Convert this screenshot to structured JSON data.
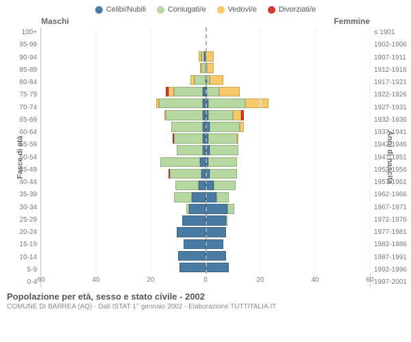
{
  "legend": {
    "items": [
      {
        "label": "Celibi/Nubili",
        "color": "#4a7ca3"
      },
      {
        "label": "Coniugati/e",
        "color": "#b6d7a0"
      },
      {
        "label": "Vedovi/e",
        "color": "#f8c968"
      },
      {
        "label": "Divorziati/e",
        "color": "#d43b2e"
      }
    ]
  },
  "headers": {
    "male": "Maschi",
    "female": "Femmine"
  },
  "ylabels": {
    "left": "Fasce di età",
    "right": "Anni di nascita"
  },
  "caption": {
    "title": "Popolazione per età, sesso e stato civile - 2002",
    "sub": "COMUNE DI BARREA (AQ) - Dati ISTAT 1° gennaio 2002 - Elaborazione TUTTITALIA.IT"
  },
  "xaxis": {
    "min": -60,
    "max": 60,
    "ticks": [
      -60,
      -40,
      -20,
      0,
      20,
      40,
      60
    ],
    "labels": [
      "60",
      "40",
      "20",
      "0",
      "20",
      "40",
      "60"
    ]
  },
  "age_labels": [
    "100+",
    "95-99",
    "90-94",
    "85-89",
    "80-84",
    "75-79",
    "70-74",
    "65-69",
    "60-64",
    "55-59",
    "50-54",
    "45-49",
    "40-44",
    "35-39",
    "30-34",
    "25-29",
    "20-24",
    "15-19",
    "10-14",
    "5-9",
    "0-4"
  ],
  "year_labels": [
    "≤ 1901",
    "1902-1906",
    "1907-1911",
    "1912-1916",
    "1917-1921",
    "1922-1926",
    "1927-1931",
    "1932-1936",
    "1937-1941",
    "1942-1946",
    "1947-1951",
    "1952-1956",
    "1957-1961",
    "1962-1966",
    "1967-1971",
    "1972-1976",
    "1977-1981",
    "1982-1986",
    "1987-1991",
    "1992-1996",
    "1997-2001"
  ],
  "colors": {
    "celibi": "#4a7ca3",
    "coniugati": "#b6d7a0",
    "vedovi": "#f8c968",
    "divorziati": "#d43b2e",
    "grid": "#eeeeee",
    "axis": "#cccccc",
    "zero": "#aaaaaa",
    "bg": "#ffffff"
  },
  "bars": {
    "male": [
      {
        "c": 0,
        "m": 0,
        "w": 0,
        "d": 0
      },
      {
        "c": 0,
        "m": 0,
        "w": 0,
        "d": 0
      },
      {
        "c": 1,
        "m": 2,
        "w": 2,
        "d": 0
      },
      {
        "c": 0,
        "m": 3,
        "w": 1,
        "d": 0
      },
      {
        "c": 0,
        "m": 8,
        "w": 3,
        "d": 0
      },
      {
        "c": 2,
        "m": 21,
        "w": 4,
        "d": 2
      },
      {
        "c": 2,
        "m": 32,
        "w": 2,
        "d": 0
      },
      {
        "c": 2,
        "m": 27,
        "w": 1,
        "d": 0
      },
      {
        "c": 2,
        "m": 23,
        "w": 0,
        "d": 0
      },
      {
        "c": 2,
        "m": 21,
        "w": 0,
        "d": 1
      },
      {
        "c": 2,
        "m": 19,
        "w": 0,
        "d": 0
      },
      {
        "c": 4,
        "m": 29,
        "w": 0,
        "d": 0
      },
      {
        "c": 3,
        "m": 23,
        "w": 0,
        "d": 1
      },
      {
        "c": 5,
        "m": 17,
        "w": 0,
        "d": 0
      },
      {
        "c": 10,
        "m": 13,
        "w": 0,
        "d": 0
      },
      {
        "c": 12,
        "m": 2,
        "w": 0,
        "d": 0
      },
      {
        "c": 17,
        "m": 0,
        "w": 0,
        "d": 0
      },
      {
        "c": 21,
        "m": 0,
        "w": 0,
        "d": 0
      },
      {
        "c": 16,
        "m": 0,
        "w": 0,
        "d": 0
      },
      {
        "c": 20,
        "m": 0,
        "w": 0,
        "d": 0
      },
      {
        "c": 19,
        "m": 0,
        "w": 0,
        "d": 0
      }
    ],
    "female": [
      {
        "c": 0,
        "m": 0,
        "w": 0,
        "d": 0
      },
      {
        "c": 0,
        "m": 0,
        "w": 0,
        "d": 0
      },
      {
        "c": 0,
        "m": 0,
        "w": 6,
        "d": 0
      },
      {
        "c": 0,
        "m": 1,
        "w": 5,
        "d": 0
      },
      {
        "c": 1,
        "m": 2,
        "w": 10,
        "d": 0
      },
      {
        "c": 1,
        "m": 9,
        "w": 15,
        "d": 0
      },
      {
        "c": 2,
        "m": 27,
        "w": 17,
        "d": 0
      },
      {
        "c": 2,
        "m": 18,
        "w": 6,
        "d": 2
      },
      {
        "c": 3,
        "m": 22,
        "w": 3,
        "d": 0
      },
      {
        "c": 2,
        "m": 21,
        "w": 1,
        "d": 0
      },
      {
        "c": 3,
        "m": 21,
        "w": 0,
        "d": 0
      },
      {
        "c": 2,
        "m": 21,
        "w": 0,
        "d": 0
      },
      {
        "c": 3,
        "m": 20,
        "w": 0,
        "d": 0
      },
      {
        "c": 6,
        "m": 16,
        "w": 0,
        "d": 0
      },
      {
        "c": 8,
        "m": 9,
        "w": 0,
        "d": 0
      },
      {
        "c": 16,
        "m": 5,
        "w": 0,
        "d": 0
      },
      {
        "c": 15,
        "m": 1,
        "w": 0,
        "d": 0
      },
      {
        "c": 15,
        "m": 0,
        "w": 0,
        "d": 0
      },
      {
        "c": 13,
        "m": 0,
        "w": 0,
        "d": 0
      },
      {
        "c": 15,
        "m": 0,
        "w": 0,
        "d": 0
      },
      {
        "c": 17,
        "m": 0,
        "w": 0,
        "d": 0
      }
    ]
  }
}
